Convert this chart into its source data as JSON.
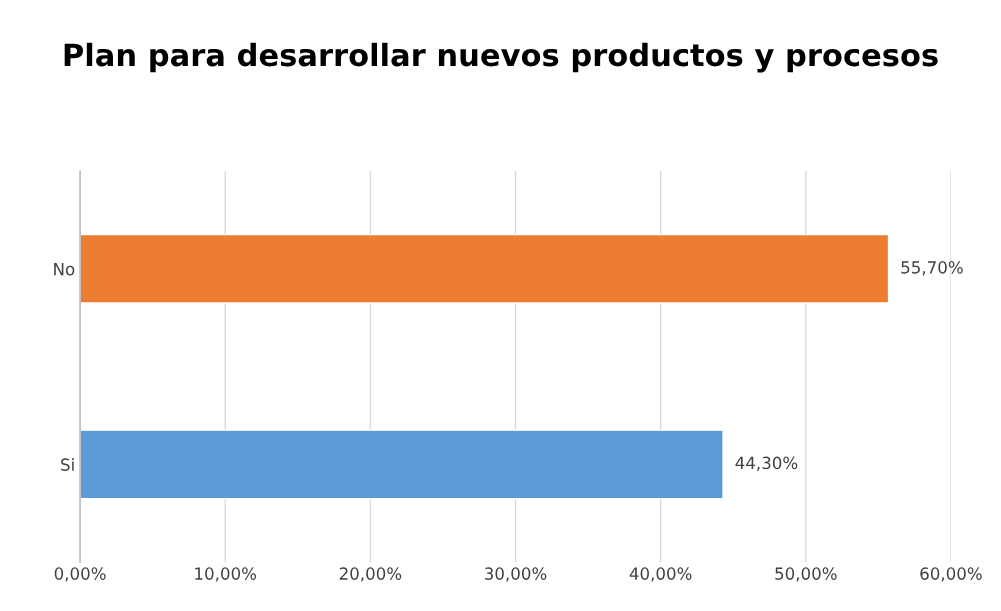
{
  "chart_data": {
    "type": "bar",
    "orientation": "horizontal",
    "title": "Plan para desarrollar nuevos productos y procesos",
    "categories": [
      "No",
      "Si"
    ],
    "values": [
      55.7,
      44.3
    ],
    "colors": [
      "#ed7d31",
      "#5b9bd5"
    ],
    "value_labels": [
      "55,70%",
      "44,30%"
    ],
    "xlim": [
      0,
      60
    ],
    "xticks": [
      {
        "value": 0,
        "label": "0,00%"
      },
      {
        "value": 10,
        "label": "10,00%"
      },
      {
        "value": 20,
        "label": "20,00%"
      },
      {
        "value": 30,
        "label": "30,00%"
      },
      {
        "value": 40,
        "label": "40,00%"
      },
      {
        "value": 50,
        "label": "50,00%"
      },
      {
        "value": 60,
        "label": "60,00%"
      }
    ],
    "grid": "x",
    "legend": false
  }
}
